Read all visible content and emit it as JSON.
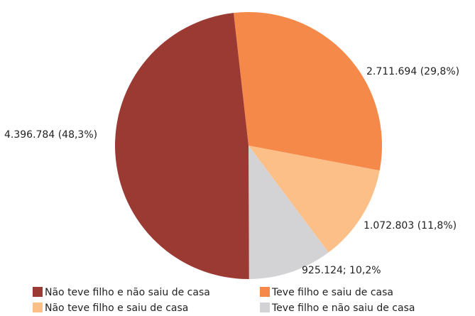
{
  "chart_data": {
    "type": "pie",
    "categories": [
      "Teve filho e saiu de casa",
      "Não teve filho e saiu de casa",
      "Teve filho e não saiu de casa",
      "Não teve filho e não saiu de casa"
    ],
    "values": [
      2711694,
      1072803,
      925124,
      4396784
    ],
    "value_labels": [
      "2.711.694 (29,8%)",
      "1.072.803 (11,8%)",
      "925.124; 10,2%",
      "4.396.784 (48,3%)"
    ],
    "colors": [
      "#f5894a",
      "#fbbf87",
      "#d3d3d5",
      "#9b3a33"
    ],
    "legend": "bottom"
  }
}
